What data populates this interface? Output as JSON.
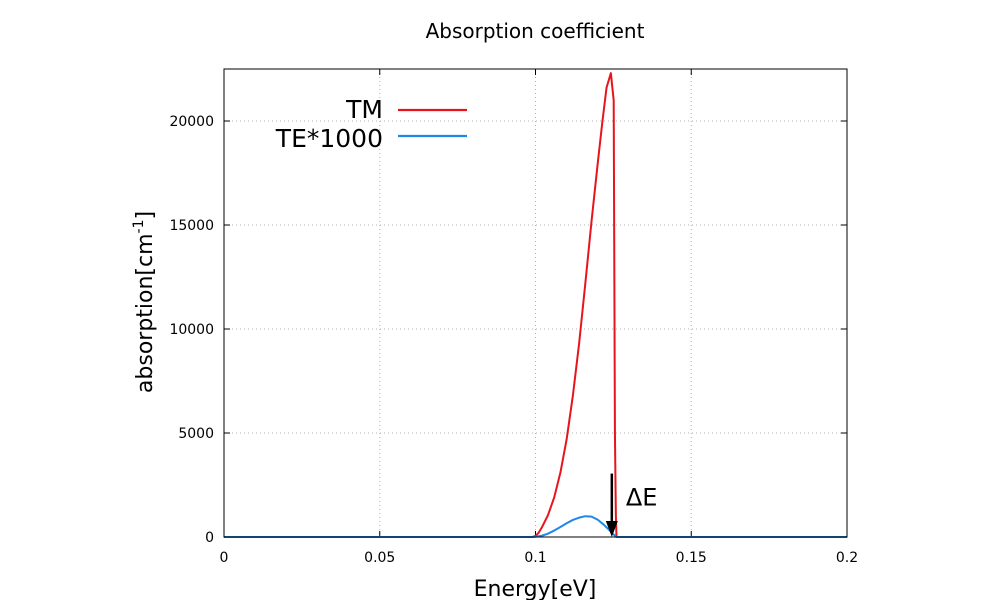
{
  "chart_data": {
    "type": "line",
    "title": "Absorption coefficient",
    "xlabel": "Energy[eV]",
    "ylabel_base": "absorption[cm",
    "ylabel_sup": "-1",
    "ylabel_close": "]",
    "xlim": [
      0,
      0.2
    ],
    "ylim": [
      0,
      22500
    ],
    "x_ticks": [
      0,
      0.05,
      0.1,
      0.15,
      0.2
    ],
    "x_tick_labels": [
      "0",
      "0.05",
      "0.1",
      "0.15",
      "0.2"
    ],
    "y_ticks": [
      0,
      5000,
      10000,
      15000,
      20000
    ],
    "y_tick_labels": [
      "0",
      "5000",
      "10000",
      "15000",
      "20000"
    ],
    "grid": true,
    "legend_position": "top-left",
    "series": [
      {
        "name": "TM",
        "color": "#e8141b",
        "points": [
          [
            0,
            0
          ],
          [
            0.05,
            0
          ],
          [
            0.095,
            0
          ],
          [
            0.099,
            0
          ],
          [
            0.1,
            50
          ],
          [
            0.101,
            200
          ],
          [
            0.102,
            450
          ],
          [
            0.104,
            1050
          ],
          [
            0.106,
            1900
          ],
          [
            0.108,
            3100
          ],
          [
            0.11,
            4700
          ],
          [
            0.112,
            6800
          ],
          [
            0.114,
            9300
          ],
          [
            0.116,
            12200
          ],
          [
            0.118,
            15200
          ],
          [
            0.12,
            18000
          ],
          [
            0.1215,
            20000
          ],
          [
            0.1228,
            21600
          ],
          [
            0.1236,
            22000
          ],
          [
            0.1242,
            22300
          ],
          [
            0.1246,
            21700
          ],
          [
            0.1251,
            21000
          ],
          [
            0.1255,
            5000
          ],
          [
            0.1258,
            1000
          ],
          [
            0.126,
            0
          ],
          [
            0.15,
            0
          ],
          [
            0.2,
            0
          ]
        ]
      },
      {
        "name": "TE*1000",
        "color": "#1e88e8",
        "points": [
          [
            0,
            0
          ],
          [
            0.099,
            0
          ],
          [
            0.1,
            10
          ],
          [
            0.102,
            60
          ],
          [
            0.104,
            160
          ],
          [
            0.106,
            310
          ],
          [
            0.108,
            480
          ],
          [
            0.11,
            660
          ],
          [
            0.112,
            820
          ],
          [
            0.114,
            930
          ],
          [
            0.116,
            1000
          ],
          [
            0.118,
            980
          ],
          [
            0.12,
            830
          ],
          [
            0.122,
            580
          ],
          [
            0.124,
            290
          ],
          [
            0.125,
            130
          ],
          [
            0.126,
            0
          ],
          [
            0.2,
            0
          ]
        ]
      }
    ],
    "annotation": {
      "text": "ΔE",
      "x": 0.1245,
      "y_start": 3050,
      "y_end": 0
    }
  }
}
